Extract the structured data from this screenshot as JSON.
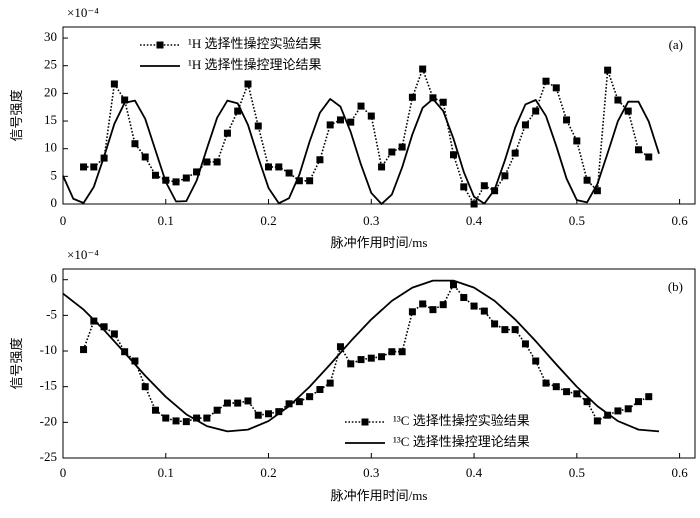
{
  "chart_data": [
    {
      "type": "line",
      "panel_label": "(a)",
      "multiplier": "×10⁻⁴",
      "xlabel": "脉冲作用时间/ms",
      "ylabel": "信号强度",
      "xlim": [
        0,
        0.615
      ],
      "xticks": [
        0,
        0.1,
        0.2,
        0.3,
        0.4,
        0.5,
        0.6
      ],
      "ylim": [
        0,
        32
      ],
      "yticks": [
        0,
        5,
        10,
        15,
        20,
        25,
        30
      ],
      "grid": false,
      "legend": "upper left",
      "series": [
        {
          "name": "¹H 选择性操控实验结果",
          "color": "#000000",
          "style": "dotted-marker",
          "x": [
            0.02,
            0.03,
            0.04,
            0.05,
            0.06,
            0.07,
            0.08,
            0.09,
            0.1,
            0.11,
            0.12,
            0.13,
            0.14,
            0.15,
            0.16,
            0.17,
            0.18,
            0.19,
            0.2,
            0.21,
            0.22,
            0.23,
            0.24,
            0.25,
            0.26,
            0.27,
            0.28,
            0.29,
            0.3,
            0.31,
            0.32,
            0.33,
            0.34,
            0.35,
            0.36,
            0.37,
            0.38,
            0.39,
            0.4,
            0.41,
            0.42,
            0.43,
            0.44,
            0.45,
            0.46,
            0.47,
            0.48,
            0.49,
            0.5,
            0.51,
            0.52,
            0.53,
            0.54,
            0.55,
            0.56,
            0.57
          ],
          "values": [
            6.7,
            6.7,
            8.3,
            21.7,
            18.8,
            10.9,
            8.5,
            5.2,
            4.3,
            4.0,
            4.7,
            5.8,
            7.6,
            7.6,
            12.8,
            16.8,
            21.7,
            14.1,
            6.7,
            6.7,
            5.6,
            4.2,
            4.2,
            8.0,
            14.3,
            15.2,
            14.8,
            17.7,
            15.9,
            6.7,
            9.4,
            10.3,
            19.3,
            24.4,
            19.2,
            18.4,
            8.9,
            3.1,
            0,
            3.3,
            2.4,
            5.1,
            9.2,
            14.3,
            16.8,
            22.2,
            21.0,
            15.2,
            11.4,
            4.3,
            2.4,
            24.2,
            18.8,
            16.8,
            9.8,
            8.5
          ]
        },
        {
          "name": "¹H 选择性操控理论结果",
          "color": "#000000",
          "style": "solid",
          "x": [
            0,
            0.01,
            0.02,
            0.03,
            0.04,
            0.05,
            0.06,
            0.07,
            0.08,
            0.09,
            0.1,
            0.11,
            0.12,
            0.13,
            0.14,
            0.15,
            0.16,
            0.17,
            0.18,
            0.19,
            0.2,
            0.21,
            0.22,
            0.23,
            0.24,
            0.25,
            0.26,
            0.27,
            0.28,
            0.29,
            0.3,
            0.31,
            0.32,
            0.33,
            0.34,
            0.35,
            0.36,
            0.37,
            0.38,
            0.39,
            0.4,
            0.41,
            0.42,
            0.43,
            0.44,
            0.45,
            0.46,
            0.47,
            0.48,
            0.49,
            0.5,
            0.51,
            0.52,
            0.53,
            0.54,
            0.55,
            0.56,
            0.57,
            0.58
          ],
          "values": [
            5.1,
            0.95,
            0.18,
            3.1,
            8.6,
            14.5,
            18.3,
            18.7,
            15.4,
            9.7,
            4.0,
            0.45,
            0.52,
            4.2,
            10.0,
            15.6,
            18.7,
            18.2,
            14.3,
            8.4,
            2.9,
            0.13,
            1.06,
            5.3,
            11.3,
            16.5,
            19.0,
            17.6,
            13.0,
            7.1,
            2.0,
            0,
            1.7,
            6.6,
            12.6,
            17.4,
            19.0,
            16.8,
            11.8,
            5.8,
            1.3,
            0.06,
            2.6,
            7.9,
            13.8,
            18.0,
            18.8,
            15.9,
            10.5,
            4.6,
            0.7,
            0.3,
            3.6,
            9.2,
            15.0,
            18.5,
            18.5,
            14.9,
            9.1
          ]
        }
      ]
    },
    {
      "type": "line",
      "panel_label": "(b)",
      "multiplier": "×10⁻⁴",
      "xlabel": "脉冲作用时间/ms",
      "ylabel": "信号强度",
      "xlim": [
        0,
        0.615
      ],
      "xticks": [
        0,
        0.1,
        0.2,
        0.3,
        0.4,
        0.5,
        0.6
      ],
      "ylim": [
        -25,
        1.5
      ],
      "yticks": [
        -25,
        -20,
        -15,
        -10,
        -5,
        0
      ],
      "grid": false,
      "legend": "lower center",
      "series": [
        {
          "name": "¹³C 选择性操控实验结果",
          "color": "#000000",
          "style": "dotted-marker",
          "x": [
            0.02,
            0.03,
            0.04,
            0.05,
            0.06,
            0.07,
            0.08,
            0.09,
            0.1,
            0.11,
            0.12,
            0.13,
            0.14,
            0.15,
            0.16,
            0.17,
            0.18,
            0.19,
            0.2,
            0.21,
            0.22,
            0.23,
            0.24,
            0.25,
            0.26,
            0.27,
            0.28,
            0.29,
            0.3,
            0.31,
            0.32,
            0.33,
            0.34,
            0.35,
            0.36,
            0.37,
            0.38,
            0.39,
            0.4,
            0.41,
            0.42,
            0.43,
            0.44,
            0.45,
            0.46,
            0.47,
            0.48,
            0.49,
            0.5,
            0.51,
            0.52,
            0.53,
            0.54,
            0.55,
            0.56,
            0.57
          ],
          "values": [
            -9.8,
            -5.8,
            -6.6,
            -7.6,
            -10.1,
            -11.4,
            -15.0,
            -18.3,
            -19.4,
            -19.8,
            -19.9,
            -19.4,
            -19.4,
            -18.3,
            -17.3,
            -17.3,
            -17.0,
            -19.0,
            -18.8,
            -18.5,
            -17.4,
            -17.1,
            -16.4,
            -15.4,
            -14.5,
            -9.4,
            -11.8,
            -11.2,
            -11.0,
            -10.8,
            -10.1,
            -10.1,
            -4.5,
            -3.4,
            -4.2,
            -3.5,
            -0.7,
            -2.5,
            -3.7,
            -4.4,
            -6.2,
            -7.0,
            -7.0,
            -9.0,
            -11.4,
            -14.5,
            -15.0,
            -15.7,
            -16.0,
            -17.1,
            -19.8,
            -19.0,
            -18.4,
            -18.1,
            -17.1,
            -16.4
          ]
        },
        {
          "name": "¹³C 选择性操控理论结果",
          "color": "#000000",
          "style": "solid",
          "x": [
            0,
            0.02,
            0.04,
            0.06,
            0.08,
            0.1,
            0.12,
            0.14,
            0.16,
            0.18,
            0.2,
            0.22,
            0.24,
            0.26,
            0.28,
            0.3,
            0.32,
            0.34,
            0.36,
            0.38,
            0.4,
            0.42,
            0.44,
            0.46,
            0.48,
            0.5,
            0.52,
            0.54,
            0.56,
            0.58
          ],
          "values": [
            -1.94,
            -4.19,
            -7.06,
            -10.24,
            -13.47,
            -16.42,
            -18.88,
            -20.53,
            -21.27,
            -21.02,
            -19.82,
            -17.73,
            -15.01,
            -11.87,
            -8.62,
            -5.57,
            -2.97,
            -1.11,
            -0.13,
            -0.13,
            -1.11,
            -2.97,
            -5.57,
            -8.62,
            -11.87,
            -15.01,
            -17.73,
            -19.82,
            -21.02,
            -21.27
          ]
        }
      ]
    }
  ]
}
